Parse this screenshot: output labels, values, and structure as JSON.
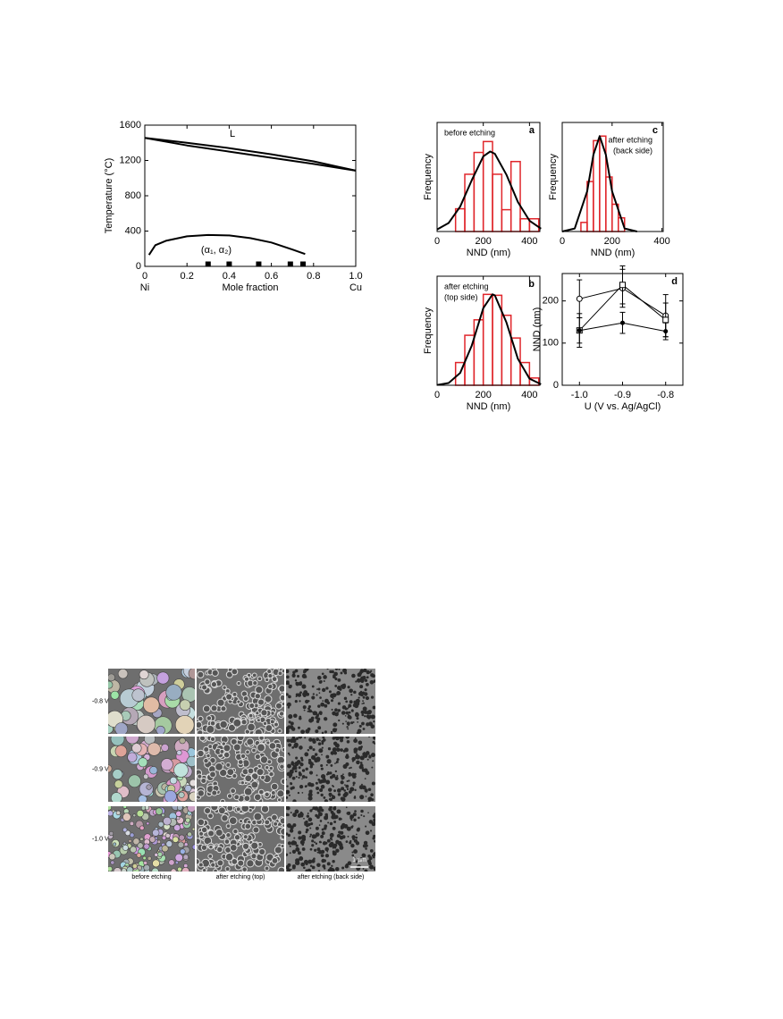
{
  "chart_data": [
    {
      "type": "line",
      "ylabel": "Temperature (°C)",
      "xlabel": "Mole fraction",
      "end_labels": [
        "Ni",
        "Cu"
      ],
      "annotations": [
        "L",
        "(α₁, α₂)"
      ],
      "xlim": [
        0,
        1
      ],
      "xticks": [
        0,
        0.2,
        0.4,
        0.6,
        0.8,
        {
          "value": 1,
          "label": "1.0"
        }
      ],
      "ylim": [
        0,
        1600
      ],
      "yticks": [
        0,
        400,
        800,
        1200,
        1600
      ],
      "series": [
        {
          "color": "#000000",
          "x": [
            0,
            0.2,
            0.4,
            0.6,
            0.8,
            1
          ],
          "values": [
            1455,
            1400,
            1340,
            1270,
            1190,
            1085
          ]
        },
        {
          "color": "#000000",
          "x": [
            0,
            0.2,
            0.4,
            0.6,
            0.8,
            1
          ],
          "values": [
            1455,
            1370,
            1300,
            1230,
            1160,
            1085
          ]
        },
        {
          "color": "#000000",
          "x": [
            0.02,
            0.05,
            0.1,
            0.2,
            0.3,
            0.4,
            0.5,
            0.6,
            0.7,
            0.76
          ],
          "values": [
            130,
            240,
            290,
            340,
            355,
            350,
            320,
            270,
            190,
            140
          ]
        },
        {
          "color": "#000000",
          "marker": "square",
          "x": [
            0.3,
            0.4,
            0.54,
            0.69,
            0.75
          ],
          "values": [
            25,
            25,
            25,
            25,
            25
          ]
        }
      ]
    },
    {
      "type": "histogram",
      "panel": "a",
      "label": [
        "before etching"
      ],
      "ylabel": "Frequency",
      "xlabel": "NND (nm)",
      "xlim": [
        0,
        445
      ],
      "xticks": [
        0,
        200,
        400
      ],
      "ylim": [
        0,
        120
      ],
      "color": "#e0262b",
      "bins": [
        80,
        120,
        160,
        200,
        240,
        280,
        320,
        360,
        400,
        440
      ],
      "values": [
        25,
        63,
        87,
        99,
        63,
        24,
        77,
        14,
        14
      ],
      "series": [
        {
          "color": "#000000",
          "x": [
            0,
            50,
            100,
            150,
            200,
            230,
            250,
            300,
            350,
            400,
            450
          ],
          "values": [
            2.3,
            9.3,
            27.3,
            56.5,
            82.7,
            88,
            85.6,
            62.7,
            32.5,
            11.9,
            3.1
          ]
        }
      ]
    },
    {
      "type": "histogram",
      "panel": "c",
      "label": [
        "after etching",
        "(back side)"
      ],
      "ylabel": "Frequency",
      "xlabel": "NND (nm)",
      "xlim": [
        0,
        405
      ],
      "xticks": [
        0,
        200,
        400
      ],
      "ylim": [
        0,
        120
      ],
      "color": "#e0262b",
      "bins": [
        75,
        100,
        125,
        150,
        175,
        200,
        225,
        250
      ],
      "values": [
        10,
        55,
        100,
        105,
        60,
        30,
        15
      ],
      "series": [
        {
          "color": "#000000",
          "x": [
            0,
            50,
            100,
            125,
            150,
            175,
            200,
            250,
            300
          ],
          "values": [
            0,
            3.3,
            44.2,
            84.6,
            105,
            84.6,
            44.2,
            3.3,
            0
          ]
        }
      ]
    },
    {
      "type": "histogram",
      "panel": "b",
      "label": [
        "after etching",
        "(top side)"
      ],
      "ylabel": "Frequency",
      "xlabel": "NND (nm)",
      "xlim": [
        0,
        445
      ],
      "xticks": [
        0,
        200,
        400
      ],
      "ylim": [
        0,
        120
      ],
      "color": "#e0262b",
      "bins": [
        80,
        120,
        160,
        200,
        240,
        280,
        320,
        360,
        400,
        440
      ],
      "values": [
        25,
        55,
        72,
        100,
        99,
        77,
        52,
        25,
        8
      ],
      "series": [
        {
          "color": "#000000",
          "x": [
            0,
            50,
            100,
            150,
            200,
            240,
            250,
            300,
            350,
            400,
            450
          ],
          "values": [
            0.3,
            2.5,
            13.5,
            43.7,
            84.9,
            100,
            99,
            69.3,
            29.1,
            7.3,
            1.1
          ]
        }
      ]
    },
    {
      "type": "errorline",
      "panel": "d",
      "ylabel": "NND (nm)",
      "xlabel": "U (V vs. Ag/AgCl)",
      "xlim": [
        -1.04,
        -0.76
      ],
      "xticks": [
        {
          "value": -1,
          "label": "-1.0"
        },
        -0.9,
        -0.8
      ],
      "ylim": [
        0,
        265
      ],
      "yticks": [
        0,
        100,
        200
      ],
      "series": [
        {
          "color": "#000000",
          "marker": "circle",
          "x": [
            -1,
            -0.9,
            -0.8
          ],
          "values": [
            205,
            230,
            165
          ],
          "errors": [
            45,
            45,
            50
          ]
        },
        {
          "color": "#000000",
          "marker": "square",
          "x": [
            -1,
            -0.9,
            -0.8
          ],
          "values": [
            130,
            238,
            155
          ],
          "errors": [
            40,
            45,
            40
          ]
        },
        {
          "color": "#000000",
          "marker": "dot",
          "x": [
            -1,
            -0.9,
            -0.8
          ],
          "values": [
            130,
            148,
            128
          ],
          "errors": [
            30,
            25,
            20
          ]
        }
      ]
    }
  ],
  "sem_figure": {
    "row_labels": [
      "-0.8 V",
      "-0.9 V",
      "-1.0 V"
    ],
    "column_labels": [
      "before etching",
      "after etching (top)",
      "after etching (back side)"
    ],
    "scale_bar": "1 µm"
  }
}
